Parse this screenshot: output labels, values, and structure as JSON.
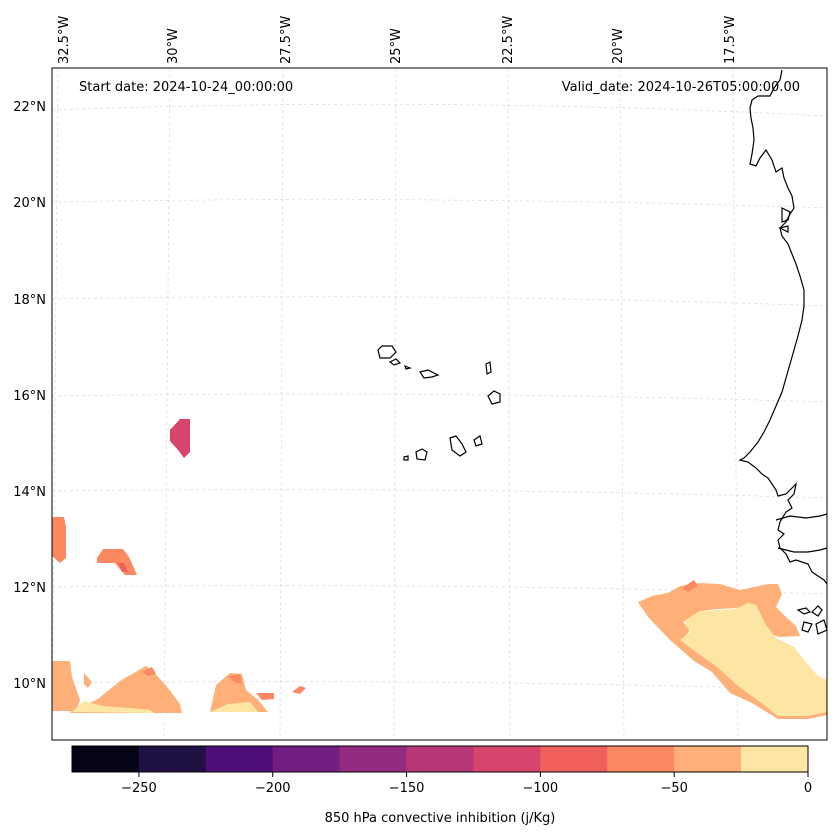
{
  "map": {
    "start_date": "Start date: 2024-10-24_00:00:00",
    "valid_date": "Valid_date: 2024-10-26T05:00:00.00",
    "lon_labels": [
      "32.5°W",
      "30°W",
      "27.5°W",
      "25°W",
      "22.5°W",
      "20°W",
      "17.5°W"
    ],
    "lat_labels": [
      "22°N",
      "20°N",
      "18°N",
      "16°N",
      "14°N",
      "12°N",
      "10°N"
    ]
  },
  "colorbar": {
    "label": "850 hPa convective inhibition (j/Kg)",
    "min": -275,
    "max": 0,
    "ticks": [
      -250,
      -200,
      -150,
      -100,
      -50,
      0
    ],
    "tick_labels": [
      "−250",
      "−200",
      "−150",
      "−100",
      "−50",
      "0"
    ],
    "colors": [
      "#050416",
      "#1f1144",
      "#4f0f7b",
      "#721f81",
      "#932b80",
      "#b73779",
      "#d8456c",
      "#f1605d",
      "#fc8961",
      "#feb078",
      "#fde6a4"
    ]
  },
  "colors": {
    "coast": "#000000",
    "grid": "#d9d9d9"
  }
}
